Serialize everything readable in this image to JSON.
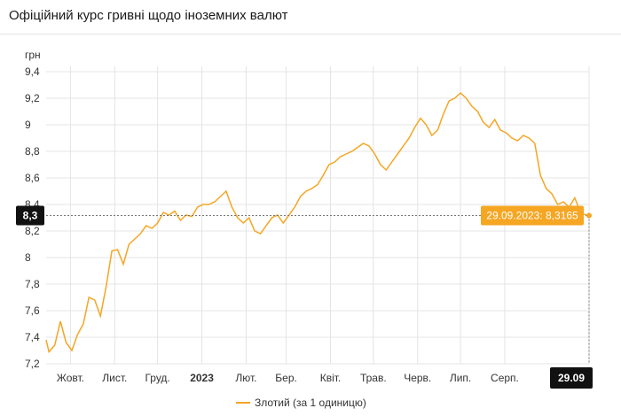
{
  "title": "Офіційний курс гривні щодо іноземних валют",
  "chart_data": {
    "type": "line",
    "ylabel": "грн",
    "ylim": [
      7.2,
      9.4
    ],
    "y_ticks": [
      "9,4",
      "9,2",
      "9",
      "8,8",
      "8,6",
      "8,4",
      "8,2",
      "8",
      "7,8",
      "7,6",
      "7,4",
      "7,2"
    ],
    "y_tick_values": [
      9.4,
      9.2,
      9.0,
      8.8,
      8.6,
      8.4,
      8.2,
      8.0,
      7.8,
      7.6,
      7.4,
      7.2
    ],
    "x_ticks": [
      "Жовт.",
      "Лист.",
      "Груд.",
      "2023",
      "Лют.",
      "Бер.",
      "Квіт.",
      "Трав.",
      "Черв.",
      "Лип.",
      "Серп."
    ],
    "x_tick_dates": [
      "2022-10-01",
      "2022-11-01",
      "2022-12-01",
      "2023-01-01",
      "2023-02-01",
      "2023-03-01",
      "2023-04-01",
      "2023-05-01",
      "2023-06-01",
      "2023-07-01",
      "2023-08-01"
    ],
    "x_range": [
      "2022-09-14",
      "2023-09-29"
    ],
    "grid": true,
    "legend": "bottom",
    "crosshair": {
      "y_label": "8,3",
      "x_label": "29.09",
      "tooltip": "29.09.2023: 8,3165",
      "value": 8.3165
    },
    "series": [
      {
        "name": "Злотий (за 1 одиницю)",
        "color": "#f5a623",
        "x": [
          "2022-09-14",
          "2022-09-16",
          "2022-09-20",
          "2022-09-24",
          "2022-09-28",
          "2022-10-02",
          "2022-10-06",
          "2022-10-10",
          "2022-10-14",
          "2022-10-18",
          "2022-10-22",
          "2022-10-26",
          "2022-10-30",
          "2022-11-03",
          "2022-11-07",
          "2022-11-11",
          "2022-11-15",
          "2022-11-19",
          "2022-11-23",
          "2022-11-27",
          "2022-12-01",
          "2022-12-05",
          "2022-12-09",
          "2022-12-13",
          "2022-12-17",
          "2022-12-21",
          "2022-12-25",
          "2022-12-29",
          "2023-01-02",
          "2023-01-06",
          "2023-01-10",
          "2023-01-14",
          "2023-01-18",
          "2023-01-22",
          "2023-01-26",
          "2023-01-30",
          "2023-02-03",
          "2023-02-07",
          "2023-02-11",
          "2023-02-15",
          "2023-02-19",
          "2023-02-23",
          "2023-02-27",
          "2023-03-03",
          "2023-03-07",
          "2023-03-11",
          "2023-03-15",
          "2023-03-19",
          "2023-03-23",
          "2023-03-27",
          "2023-03-31",
          "2023-04-04",
          "2023-04-08",
          "2023-04-12",
          "2023-04-16",
          "2023-04-20",
          "2023-04-24",
          "2023-04-28",
          "2023-05-02",
          "2023-05-06",
          "2023-05-10",
          "2023-05-14",
          "2023-05-18",
          "2023-05-22",
          "2023-05-26",
          "2023-05-30",
          "2023-06-03",
          "2023-06-07",
          "2023-06-11",
          "2023-06-15",
          "2023-06-19",
          "2023-06-23",
          "2023-06-27",
          "2023-07-01",
          "2023-07-05",
          "2023-07-09",
          "2023-07-13",
          "2023-07-17",
          "2023-07-21",
          "2023-07-25",
          "2023-07-29",
          "2023-08-02",
          "2023-08-06",
          "2023-08-10",
          "2023-08-14",
          "2023-08-18",
          "2023-08-22",
          "2023-08-26",
          "2023-08-30",
          "2023-09-03",
          "2023-09-07",
          "2023-09-11",
          "2023-09-15",
          "2023-09-19",
          "2023-09-23",
          "2023-09-27",
          "2023-09-29"
        ],
        "values": [
          7.38,
          7.29,
          7.34,
          7.52,
          7.36,
          7.3,
          7.42,
          7.5,
          7.7,
          7.68,
          7.56,
          7.78,
          8.05,
          8.06,
          7.95,
          8.1,
          8.14,
          8.18,
          8.24,
          8.22,
          8.26,
          8.34,
          8.32,
          8.35,
          8.28,
          8.32,
          8.31,
          8.38,
          8.4,
          8.4,
          8.42,
          8.46,
          8.5,
          8.38,
          8.3,
          8.26,
          8.3,
          8.2,
          8.18,
          8.24,
          8.3,
          8.32,
          8.26,
          8.32,
          8.38,
          8.46,
          8.5,
          8.52,
          8.55,
          8.62,
          8.7,
          8.72,
          8.76,
          8.78,
          8.8,
          8.83,
          8.86,
          8.84,
          8.78,
          8.7,
          8.66,
          8.72,
          8.78,
          8.84,
          8.9,
          8.98,
          9.05,
          9.0,
          8.92,
          8.96,
          9.08,
          9.18,
          9.2,
          9.24,
          9.2,
          9.14,
          9.1,
          9.02,
          8.98,
          9.04,
          8.96,
          8.94,
          8.9,
          8.88,
          8.92,
          8.9,
          8.86,
          8.62,
          8.52,
          8.48,
          8.4,
          8.42,
          8.38,
          8.45,
          8.34,
          8.32,
          8.3165
        ]
      }
    ]
  }
}
